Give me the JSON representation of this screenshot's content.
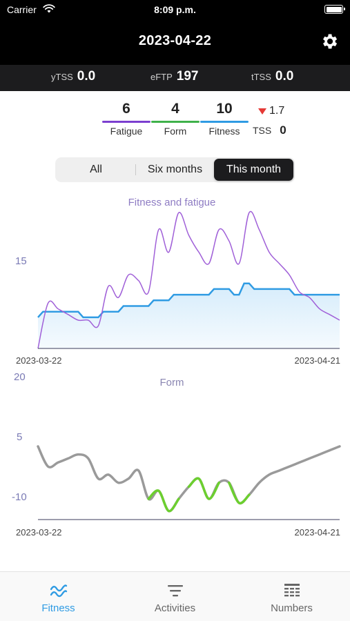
{
  "status_bar": {
    "carrier": "Carrier",
    "time": "8:09 p.m."
  },
  "header": {
    "title": "2023-04-22"
  },
  "metrics": [
    {
      "label": "yTSS",
      "value": "0.0"
    },
    {
      "label": "eFTP",
      "value": "197"
    },
    {
      "label": "tTSS",
      "value": "0.0"
    }
  ],
  "stats": {
    "fatigue": {
      "value": "6",
      "label": "Fatigue",
      "color": "#7b3fcf"
    },
    "form": {
      "value": "4",
      "label": "Form",
      "color": "#3fb14a"
    },
    "fitness": {
      "value": "10",
      "label": "Fitness",
      "color": "#2f9be3"
    },
    "delta": "1.7",
    "tss_label": "TSS",
    "tss_value": "0"
  },
  "range_selector": {
    "options": [
      "All",
      "Six months",
      "This month"
    ],
    "selected": "This month"
  },
  "fitness_chart": {
    "title": "Fitness and fatigue",
    "y_tick": "15",
    "x_start": "2023-03-22",
    "x_end": "2023-04-21"
  },
  "form_chart": {
    "title": "Form",
    "y_ticks": [
      "20",
      "5",
      "-10"
    ],
    "x_start": "2023-03-22",
    "x_end": "2023-04-21"
  },
  "chart_data": [
    {
      "type": "line",
      "title": "Fitness and fatigue",
      "x_range": [
        "2023-03-22",
        "2023-04-21"
      ],
      "y_tick_labels": [
        "15"
      ],
      "series": [
        {
          "name": "Fatigue",
          "color": "#a060d8",
          "x": [
            0,
            1,
            2,
            3,
            4,
            5,
            6,
            7,
            8,
            9,
            10,
            11,
            12,
            13,
            14,
            15,
            16,
            17,
            18,
            19,
            20,
            21,
            22,
            23,
            24,
            25,
            26,
            27,
            28,
            29,
            30
          ],
          "values": [
            0,
            8,
            7,
            6,
            5,
            5,
            4,
            11,
            9,
            13,
            12,
            10,
            21,
            17,
            24,
            20,
            17,
            15,
            21,
            19,
            15,
            24,
            21,
            17,
            15,
            13,
            10,
            9,
            7,
            6,
            5
          ]
        },
        {
          "name": "Fitness",
          "color": "#2f9be3",
          "fill": "#d6ecfb",
          "x": [
            0,
            1,
            2,
            3,
            4,
            5,
            6,
            7,
            8,
            9,
            10,
            11,
            12,
            13,
            14,
            15,
            16,
            17,
            18,
            19,
            20,
            21,
            22,
            23,
            24,
            25,
            26,
            27,
            28,
            29,
            30
          ],
          "values": [
            5.5,
            6.5,
            6.5,
            6.5,
            6.5,
            5.5,
            5.5,
            6.5,
            6.5,
            7.5,
            7.5,
            7.5,
            8.5,
            8.5,
            9.5,
            9.5,
            9.5,
            9.5,
            10.5,
            10.5,
            9.5,
            11.5,
            10.5,
            10.5,
            10.5,
            10.5,
            9.5,
            9.5,
            9.5,
            9.5,
            9.5
          ]
        }
      ]
    },
    {
      "type": "line",
      "title": "Form",
      "x_range": [
        "2023-03-22",
        "2023-04-21"
      ],
      "y_ticks": [
        20,
        5,
        -10
      ],
      "ylim": [
        -15,
        20
      ],
      "series": [
        {
          "name": "Form",
          "color": "#9a9a9a",
          "highlight_color": "#6ccf2f",
          "x": [
            0,
            1,
            2,
            3,
            4,
            5,
            6,
            7,
            8,
            9,
            10,
            11,
            12,
            13,
            14,
            15,
            16,
            17,
            18,
            19,
            20,
            21,
            22,
            23,
            24,
            25,
            26,
            27,
            28,
            29,
            30
          ],
          "values": [
            5,
            0,
            1,
            2,
            3,
            2,
            -3,
            -2,
            -4,
            -3,
            -1,
            -8,
            -6,
            -11,
            -8,
            -5,
            -3,
            -8,
            -4,
            -4,
            -9,
            -7,
            -4,
            -2,
            -1,
            0,
            1,
            2,
            3,
            4,
            5
          ],
          "highlight_x": [
            [
              11,
              14
            ],
            [
              15,
              18
            ],
            [
              19,
              21
            ]
          ]
        }
      ]
    }
  ],
  "tabs": [
    {
      "label": "Fitness",
      "icon": "fitness-wave-icon",
      "active": true
    },
    {
      "label": "Activities",
      "icon": "activities-list-icon",
      "active": false
    },
    {
      "label": "Numbers",
      "icon": "numbers-grid-icon",
      "active": false
    }
  ],
  "colors": {
    "accent": "#2f9be3",
    "header_bg": "#000000",
    "metrics_bg": "#1c1c1e"
  }
}
